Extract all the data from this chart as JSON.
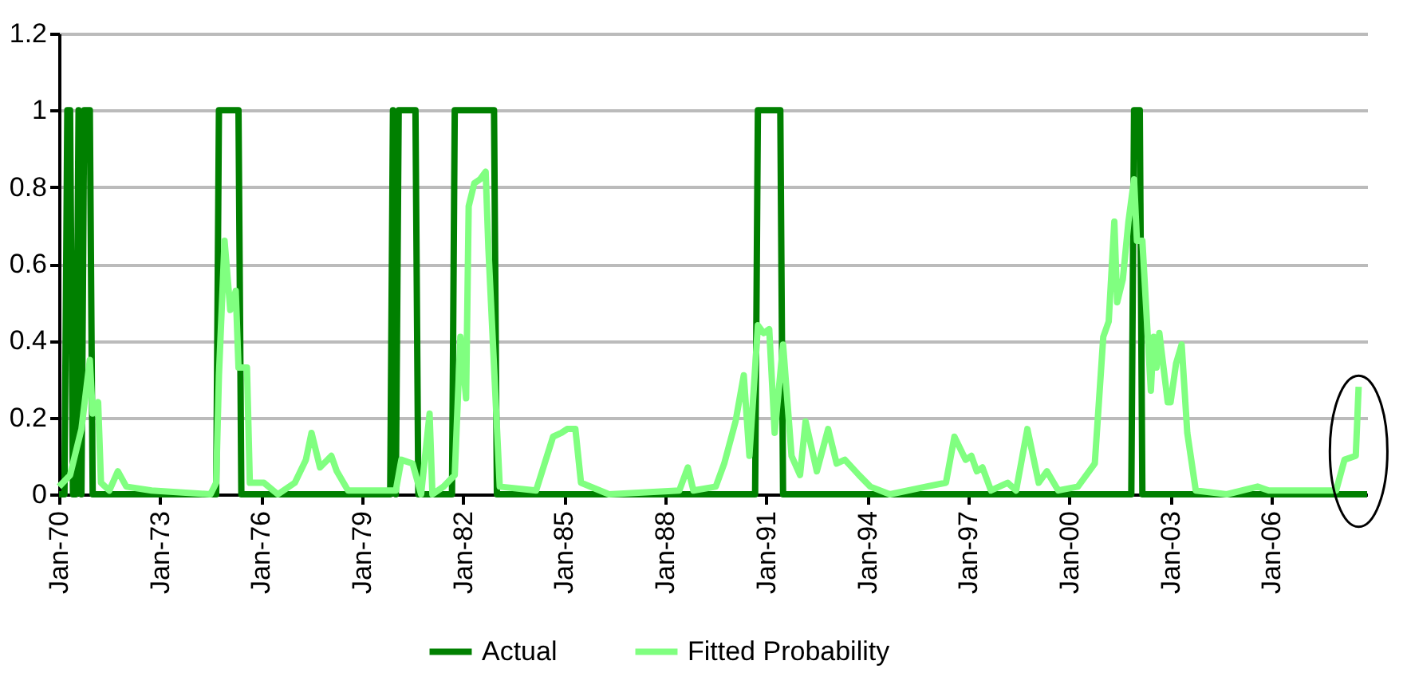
{
  "chart_data": {
    "type": "line",
    "legend": "bottom",
    "grid": "y",
    "marker": "none",
    "line_style": "solid",
    "xlim": [
      "1970-01",
      "2008-11"
    ],
    "xticks": [
      {
        "value": "1970-01",
        "label": "Jan-70"
      },
      {
        "value": "1973-01",
        "label": "Jan-73"
      },
      {
        "value": "1976-01",
        "label": "Jan-76"
      },
      {
        "value": "1979-01",
        "label": "Jan-79"
      },
      {
        "value": "1982-01",
        "label": "Jan-82"
      },
      {
        "value": "1985-01",
        "label": "Jan-85"
      },
      {
        "value": "1988-01",
        "label": "Jan-88"
      },
      {
        "value": "1991-01",
        "label": "Jan-91"
      },
      {
        "value": "1994-01",
        "label": "Jan-94"
      },
      {
        "value": "1997-01",
        "label": "Jan-97"
      },
      {
        "value": "2000-01",
        "label": "Jan-00"
      },
      {
        "value": "2003-01",
        "label": "Jan-03"
      },
      {
        "value": "2006-01",
        "label": "Jan-06"
      }
    ],
    "ylim": [
      0,
      1.2
    ],
    "yticks": [
      0,
      0.2,
      0.4,
      0.6,
      0.8,
      1,
      1.2
    ],
    "series": [
      {
        "name": "Actual",
        "color": "#008000",
        "x": [
          "1970-01",
          "1970-03",
          "1970-04",
          "1970-05",
          "1970-06",
          "1970-07",
          "1970-08",
          "1970-09",
          "1970-10",
          "1970-12",
          "1971-01",
          "1974-09",
          "1974-10",
          "1975-05",
          "1975-06",
          "1979-11",
          "1979-12",
          "1980-01",
          "1980-02",
          "1980-08",
          "1980-09",
          "1981-09",
          "1981-10",
          "1982-12",
          "1983-01",
          "1990-09",
          "1990-10",
          "1991-06",
          "1991-07",
          "2001-11",
          "2001-12",
          "2002-02",
          "2002-03",
          "2008-11"
        ],
        "values": [
          0,
          0,
          1,
          1,
          0,
          0,
          1,
          0,
          1,
          1,
          0,
          0,
          1,
          1,
          0,
          0,
          1,
          0,
          1,
          1,
          0,
          0,
          1,
          1,
          0,
          0,
          1,
          1,
          0,
          0,
          1,
          1,
          0,
          0
        ]
      },
      {
        "name": "Fitted Probability",
        "color": "#80ff80",
        "x": [
          "1970-01",
          "1970-05",
          "1970-09",
          "1970-12",
          "1971-01",
          "1971-03",
          "1971-04",
          "1971-07",
          "1971-10",
          "1972-01",
          "1972-10",
          "1974-07",
          "1974-09",
          "1974-10",
          "1974-12",
          "1975-02",
          "1975-04",
          "1975-05",
          "1975-08",
          "1975-09",
          "1976-02",
          "1976-07",
          "1977-01",
          "1977-05",
          "1977-07",
          "1977-10",
          "1978-02",
          "1978-04",
          "1978-08",
          "1980-01",
          "1980-03",
          "1980-07",
          "1980-10",
          "1981-01",
          "1981-02",
          "1981-06",
          "1981-10",
          "1981-12",
          "1982-02",
          "1982-03",
          "1982-05",
          "1982-07",
          "1982-09",
          "1982-10",
          "1983-02",
          "1984-03",
          "1984-09",
          "1984-12",
          "1985-02",
          "1985-05",
          "1985-07",
          "1986-05",
          "1988-06",
          "1988-09",
          "1988-11",
          "1989-07",
          "1989-10",
          "1990-02",
          "1990-05",
          "1990-07",
          "1990-10",
          "1990-12",
          "1991-02",
          "1991-04",
          "1991-07",
          "1991-10",
          "1992-01",
          "1992-03",
          "1992-07",
          "1992-11",
          "1993-02",
          "1993-05",
          "1993-10",
          "1994-02",
          "1994-09",
          "1995-10",
          "1996-05",
          "1996-08",
          "1996-12",
          "1997-02",
          "1997-04",
          "1997-06",
          "1997-09",
          "1998-03",
          "1998-06",
          "1998-10",
          "1999-02",
          "1999-05",
          "1999-09",
          "2000-04",
          "2000-10",
          "2001-01",
          "2001-03",
          "2001-05",
          "2001-06",
          "2001-08",
          "2001-10",
          "2001-12",
          "2002-01",
          "2002-03",
          "2002-06",
          "2002-07",
          "2002-08",
          "2002-09",
          "2002-12",
          "2003-01",
          "2003-03",
          "2003-05",
          "2003-07",
          "2003-10",
          "2004-09",
          "2005-08",
          "2005-12",
          "2007-12",
          "2008-03",
          "2008-07",
          "2008-08"
        ],
        "values": [
          0.02,
          0.05,
          0.17,
          0.35,
          0.21,
          0.24,
          0.03,
          0.01,
          0.06,
          0.02,
          0.01,
          0,
          0.03,
          0.31,
          0.66,
          0.48,
          0.53,
          0.33,
          0.33,
          0.03,
          0.03,
          0,
          0.03,
          0.09,
          0.16,
          0.07,
          0.1,
          0.06,
          0.01,
          0.01,
          0.09,
          0.08,
          0,
          0.21,
          0,
          0.02,
          0.05,
          0.41,
          0.25,
          0.75,
          0.81,
          0.82,
          0.84,
          0.64,
          0.02,
          0.01,
          0.15,
          0.16,
          0.17,
          0.17,
          0.03,
          0,
          0.01,
          0.07,
          0.01,
          0.02,
          0.08,
          0.19,
          0.31,
          0.1,
          0.44,
          0.42,
          0.43,
          0.16,
          0.39,
          0.1,
          0.05,
          0.19,
          0.06,
          0.17,
          0.08,
          0.09,
          0.05,
          0.02,
          0,
          0.02,
          0.03,
          0.15,
          0.09,
          0.1,
          0.06,
          0.07,
          0.01,
          0.03,
          0.01,
          0.17,
          0.03,
          0.06,
          0.01,
          0.02,
          0.08,
          0.41,
          0.45,
          0.71,
          0.5,
          0.56,
          0.71,
          0.82,
          0.66,
          0.66,
          0.27,
          0.41,
          0.33,
          0.42,
          0.24,
          0.24,
          0.34,
          0.39,
          0.16,
          0.01,
          0,
          0.02,
          0.01,
          0.01,
          0.09,
          0.1,
          0.28
        ]
      }
    ]
  }
}
